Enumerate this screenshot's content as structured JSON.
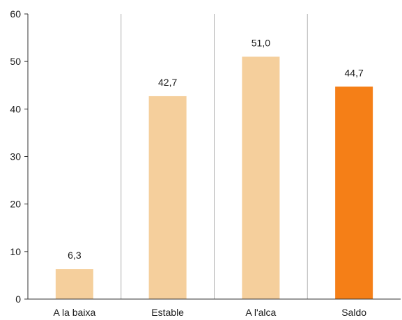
{
  "chart_data": {
    "type": "bar",
    "categories": [
      "A la baixa",
      "Estable",
      "A l'alca",
      "Saldo"
    ],
    "values": [
      6.3,
      42.7,
      51.0,
      44.7
    ],
    "value_labels": [
      "6,3",
      "42,7",
      "51,0",
      "44,7"
    ],
    "ylim": [
      0,
      60
    ],
    "yticks": [
      0,
      10,
      20,
      30,
      40,
      50,
      60
    ],
    "ytick_labels": [
      "0",
      "10",
      "20",
      "30",
      "40",
      "50",
      "60"
    ],
    "grid": "vertical separators between categories",
    "colors": [
      "#f5cf9c",
      "#f5cf9c",
      "#f5cf9c",
      "#f57f17"
    ]
  }
}
